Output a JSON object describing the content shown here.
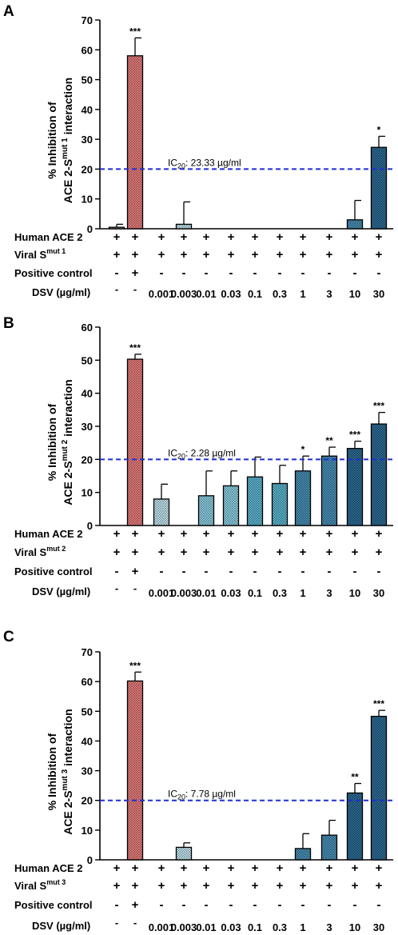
{
  "chart_data": [
    {
      "panel_letter": "A",
      "type": "bar",
      "ylabel_line1": "% Inhibition of",
      "ylabel_line2_pre": "ACE 2-S",
      "ylabel_sup": "mut 1",
      "ylabel_line2_post": " interaction",
      "ylim": [
        0,
        70
      ],
      "yticks": [
        0,
        10,
        20,
        30,
        40,
        50,
        60,
        70
      ],
      "bars": [
        {
          "value": 0.5,
          "error": 1.0,
          "sig": "",
          "fill": "grey"
        },
        {
          "value": 58,
          "error": 6,
          "sig": "***",
          "fill": "red"
        },
        {
          "value": null,
          "error": 0,
          "sig": "",
          "fill": "none"
        },
        {
          "value": 1.5,
          "error": 7.5,
          "sig": "",
          "fill": "blue1"
        },
        {
          "value": null,
          "error": 0,
          "sig": "",
          "fill": "none"
        },
        {
          "value": null,
          "error": 0,
          "sig": "",
          "fill": "none"
        },
        {
          "value": null,
          "error": 0,
          "sig": "",
          "fill": "none"
        },
        {
          "value": null,
          "error": 0,
          "sig": "",
          "fill": "none"
        },
        {
          "value": null,
          "error": 0,
          "sig": "",
          "fill": "none"
        },
        {
          "value": null,
          "error": 0,
          "sig": "",
          "fill": "none"
        },
        {
          "value": 3,
          "error": 6.5,
          "sig": "",
          "fill": "blue4"
        },
        {
          "value": 27.3,
          "error": 3.7,
          "sig": "*",
          "fill": "blue5"
        }
      ],
      "ic_line": 20,
      "ic_pre": "IC",
      "ic_sub": "20",
      "ic_post": ": 23.33 µg/ml",
      "table": {
        "rows": [
          {
            "label_pre": "Human ACE 2",
            "label_sup": "",
            "values": [
              "+",
              "+",
              "+",
              "+",
              "+",
              "+",
              "+",
              "+",
              "+",
              "+",
              "+",
              "+"
            ]
          },
          {
            "label_pre": "Viral S",
            "label_sup": "mut 1",
            "values": [
              "+",
              "+",
              "+",
              "+",
              "+",
              "+",
              "+",
              "+",
              "+",
              "+",
              "+",
              "+"
            ]
          },
          {
            "label_pre": "Positive control",
            "label_sup": "",
            "values": [
              "-",
              "+",
              "-",
              "-",
              "-",
              "-",
              "-",
              "-",
              "-",
              "-",
              "-",
              "-"
            ]
          }
        ],
        "dsv_label": "DSV (µg/ml)",
        "dsv_values": [
          "-",
          "-",
          "0.001",
          "0.003",
          "0.01",
          "0.03",
          "0.1",
          "0.3",
          "1",
          "3",
          "10",
          "30"
        ]
      }
    },
    {
      "panel_letter": "B",
      "type": "bar",
      "ylabel_line1": "% Inhibition of",
      "ylabel_line2_pre": "ACE 2-S",
      "ylabel_sup": "mut 2",
      "ylabel_line2_post": " interaction",
      "ylim": [
        0,
        60
      ],
      "yticks": [
        0,
        10,
        20,
        30,
        40,
        50,
        60
      ],
      "bars": [
        {
          "value": null,
          "error": 0,
          "sig": "",
          "fill": "none"
        },
        {
          "value": 50.3,
          "error": 1.5,
          "sig": "***",
          "fill": "red"
        },
        {
          "value": 8,
          "error": 4.5,
          "sig": "",
          "fill": "blue1"
        },
        {
          "value": null,
          "error": 0,
          "sig": "",
          "fill": "none"
        },
        {
          "value": 9,
          "error": 7.5,
          "sig": "",
          "fill": "blue2"
        },
        {
          "value": 12,
          "error": 4.5,
          "sig": "",
          "fill": "blue2"
        },
        {
          "value": 14.7,
          "error": 6,
          "sig": "",
          "fill": "blue3"
        },
        {
          "value": 12.7,
          "error": 5.5,
          "sig": "",
          "fill": "blue3"
        },
        {
          "value": 16.5,
          "error": 4.5,
          "sig": "*",
          "fill": "blue4"
        },
        {
          "value": 21,
          "error": 2.7,
          "sig": "**",
          "fill": "blue4"
        },
        {
          "value": 23.3,
          "error": 2.2,
          "sig": "***",
          "fill": "blue5"
        },
        {
          "value": 30.7,
          "error": 3.5,
          "sig": "***",
          "fill": "blue5"
        }
      ],
      "ic_line": 20,
      "ic_pre": "IC",
      "ic_sub": "20",
      "ic_post": ": 2.28 µg/ml",
      "table": {
        "rows": [
          {
            "label_pre": "Human ACE 2",
            "label_sup": "",
            "values": [
              "+",
              "+",
              "+",
              "+",
              "+",
              "+",
              "+",
              "+",
              "+",
              "+",
              "+",
              "+"
            ]
          },
          {
            "label_pre": "Viral S",
            "label_sup": "mut 2",
            "values": [
              "+",
              "+",
              "+",
              "+",
              "+",
              "+",
              "+",
              "+",
              "+",
              "+",
              "+",
              "+"
            ]
          },
          {
            "label_pre": "Positive control",
            "label_sup": "",
            "values": [
              "-",
              "+",
              "-",
              "-",
              "-",
              "-",
              "-",
              "-",
              "-",
              "-",
              "-",
              "-"
            ]
          }
        ],
        "dsv_label": "DSV (µg/ml)",
        "dsv_values": [
          "-",
          "-",
          "0.001",
          "0.003",
          "0.01",
          "0.03",
          "0.1",
          "0.3",
          "1",
          "3",
          "10",
          "30"
        ]
      }
    },
    {
      "panel_letter": "C",
      "type": "bar",
      "ylabel_line1": "% Inhibition of",
      "ylabel_line2_pre": "ACE 2-S",
      "ylabel_sup": "mut 3",
      "ylabel_line2_post": " interaction",
      "ylim": [
        0,
        70
      ],
      "yticks": [
        0,
        10,
        20,
        30,
        40,
        50,
        60,
        70
      ],
      "bars": [
        {
          "value": null,
          "error": 0,
          "sig": "",
          "fill": "none"
        },
        {
          "value": 60.2,
          "error": 3,
          "sig": "***",
          "fill": "red"
        },
        {
          "value": null,
          "error": 0,
          "sig": "",
          "fill": "none"
        },
        {
          "value": 4.2,
          "error": 1.5,
          "sig": "",
          "fill": "blue1"
        },
        {
          "value": null,
          "error": 0,
          "sig": "",
          "fill": "none"
        },
        {
          "value": null,
          "error": 0,
          "sig": "",
          "fill": "none"
        },
        {
          "value": null,
          "error": 0,
          "sig": "",
          "fill": "none"
        },
        {
          "value": null,
          "error": 0,
          "sig": "",
          "fill": "none"
        },
        {
          "value": 3.8,
          "error": 5,
          "sig": "",
          "fill": "blue4"
        },
        {
          "value": 8.3,
          "error": 5,
          "sig": "",
          "fill": "blue4"
        },
        {
          "value": 22.5,
          "error": 3.2,
          "sig": "**",
          "fill": "blue5"
        },
        {
          "value": 48.3,
          "error": 2,
          "sig": "***",
          "fill": "blue5"
        }
      ],
      "ic_line": 20,
      "ic_pre": "IC",
      "ic_sub": "20",
      "ic_post": ": 7.78 µg/ml",
      "table": {
        "rows": [
          {
            "label_pre": "Human ACE 2",
            "label_sup": "",
            "values": [
              "+",
              "+",
              "+",
              "+",
              "+",
              "+",
              "+",
              "+",
              "+",
              "+",
              "+",
              "+"
            ]
          },
          {
            "label_pre": "Viral S",
            "label_sup": "mut 3",
            "values": [
              "+",
              "+",
              "+",
              "+",
              "+",
              "+",
              "+",
              "+",
              "+",
              "+",
              "+",
              "+"
            ]
          },
          {
            "label_pre": "Positive control",
            "label_sup": "",
            "values": [
              "-",
              "+",
              "-",
              "-",
              "-",
              "-",
              "-",
              "-",
              "-",
              "-",
              "-",
              "-"
            ]
          }
        ],
        "dsv_label": "DSV (µg/ml)",
        "dsv_values": [
          "-",
          "-",
          "0.001",
          "0.003",
          "0.01",
          "0.03",
          "0.1",
          "0.3",
          "1",
          "3",
          "10",
          "30"
        ]
      }
    }
  ],
  "colors": {
    "red": "#f08080",
    "grey": "#b8b8b8",
    "blue1": "#c8ecf6",
    "blue2": "#8fd6ea",
    "blue3": "#5fbcd8",
    "blue4": "#4a94bc",
    "blue5": "#2e6f9a",
    "ic_line": "#1f2fd0"
  }
}
